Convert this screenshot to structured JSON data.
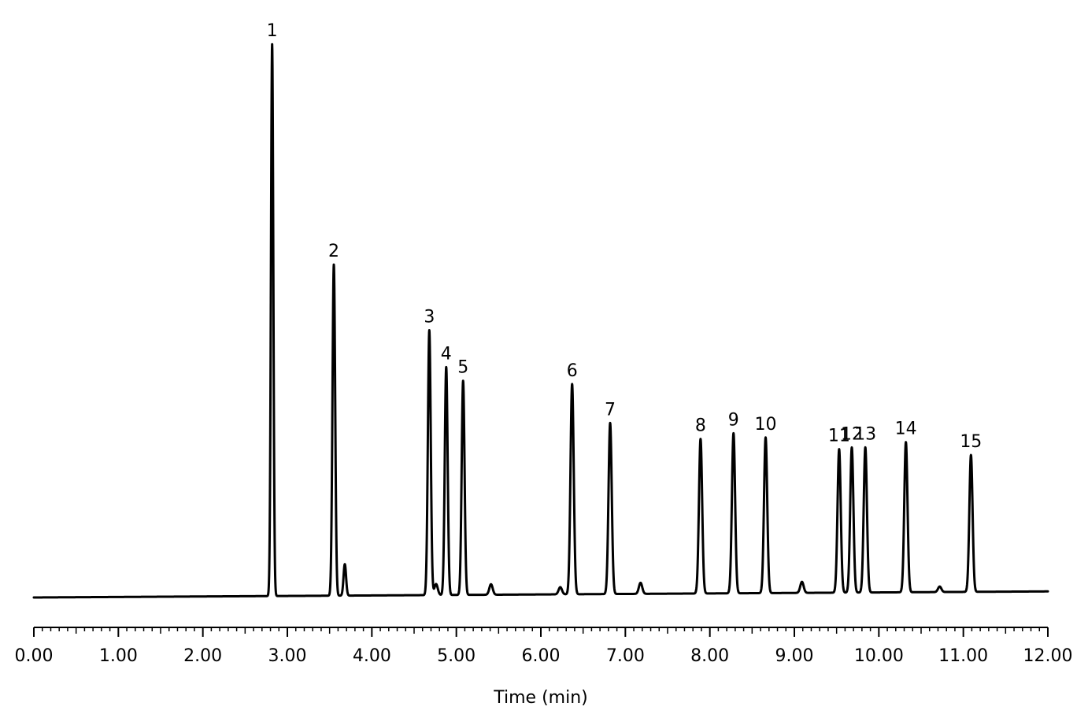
{
  "chart_data": {
    "type": "line",
    "title": "",
    "xlabel": "Time (min)",
    "ylabel": "",
    "xlim": [
      0,
      12
    ],
    "ylim": [
      0,
      100
    ],
    "grid": false,
    "x_ticks": [
      "0.00",
      "1.00",
      "2.00",
      "3.00",
      "4.00",
      "5.00",
      "6.00",
      "7.00",
      "8.00",
      "9.00",
      "10.00",
      "11.00",
      "12.00"
    ],
    "baseline": {
      "start": 0.0,
      "end": 1.1
    },
    "series": [
      {
        "peaks": [
          {
            "label": "1",
            "time": 2.82,
            "height": 100.0,
            "width": 0.014
          },
          {
            "label": "2",
            "time": 3.55,
            "height": 60.0,
            "width": 0.016
          },
          {
            "label": "3",
            "time": 4.68,
            "height": 48.0,
            "width": 0.017
          },
          {
            "label": "4",
            "time": 4.88,
            "height": 41.3,
            "width": 0.017
          },
          {
            "label": "5",
            "time": 5.08,
            "height": 38.8,
            "width": 0.017
          },
          {
            "label": "6",
            "time": 6.37,
            "height": 38.1,
            "width": 0.019
          },
          {
            "label": "7",
            "time": 6.82,
            "height": 31.0,
            "width": 0.019
          },
          {
            "label": "8",
            "time": 7.89,
            "height": 28.0,
            "width": 0.019
          },
          {
            "label": "9",
            "time": 8.28,
            "height": 29.0,
            "width": 0.019
          },
          {
            "label": "10",
            "time": 8.66,
            "height": 28.2,
            "width": 0.019
          },
          {
            "label": "11",
            "time": 9.53,
            "height": 26.0,
            "width": 0.019
          },
          {
            "label": "12",
            "time": 9.68,
            "height": 26.3,
            "width": 0.019
          },
          {
            "label": "13",
            "time": 9.84,
            "height": 26.3,
            "width": 0.019
          },
          {
            "label": "14",
            "time": 10.32,
            "height": 27.2,
            "width": 0.019
          },
          {
            "label": "15",
            "time": 11.09,
            "height": 24.8,
            "width": 0.019
          }
        ],
        "minor_peaks": [
          {
            "time": 3.68,
            "height": 5.7,
            "width": 0.015
          },
          {
            "time": 4.76,
            "height": 2.0,
            "width": 0.02
          },
          {
            "time": 5.41,
            "height": 1.9,
            "width": 0.02
          },
          {
            "time": 6.23,
            "height": 1.3,
            "width": 0.02
          },
          {
            "time": 7.18,
            "height": 2.0,
            "width": 0.02
          },
          {
            "time": 9.09,
            "height": 2.0,
            "width": 0.02
          },
          {
            "time": 10.72,
            "height": 1.0,
            "width": 0.02
          }
        ]
      }
    ]
  }
}
